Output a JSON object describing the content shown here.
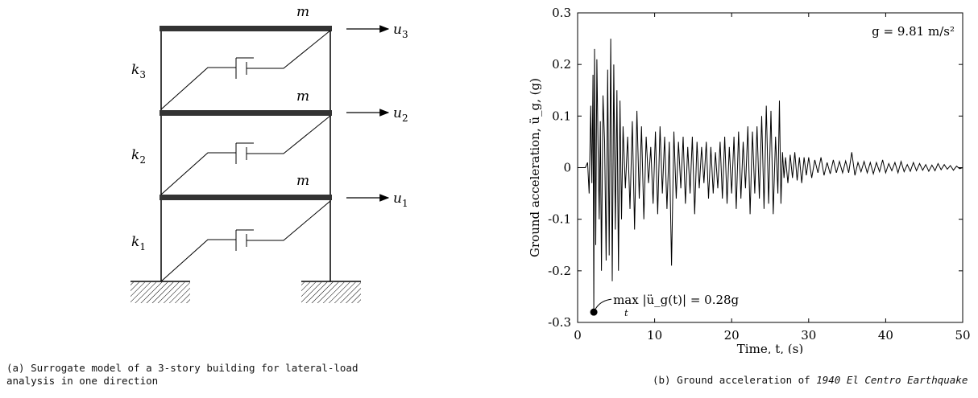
{
  "figure_a": {
    "mass_labels": [
      "m",
      "m",
      "m"
    ],
    "stiffness_labels": [
      "k3",
      "k2",
      "k1"
    ],
    "displacement_labels": [
      "u3",
      "u2",
      "u1"
    ],
    "caption": "(a) Surrogate model of a 3-story building for lateral-load analysis in one direction"
  },
  "figure_b": {
    "caption_prefix": "(b) Ground acceleration of ",
    "caption_italic": "1940 El Centro Earthquake",
    "gravity_note": "g = 9.81 m/s²",
    "peak_annotation": "max |ü_g(t)| = 0.28g",
    "peak_annotation_sub": "t"
  },
  "chart_data": {
    "type": "line",
    "xlabel": "Time, t, (s)",
    "ylabel": "Ground acceleration, ü_g, (g)",
    "xlim": [
      0,
      50
    ],
    "ylim": [
      -0.3,
      0.3
    ],
    "x_ticks": [
      "0",
      "10",
      "20",
      "30",
      "40",
      "50"
    ],
    "y_ticks": [
      "0.3",
      "0.2",
      "0.1",
      "0",
      "-0.1",
      "-0.2",
      "-0.3"
    ],
    "grid": false,
    "peak_point": {
      "t": 2.1,
      "a": -0.28
    },
    "series": [
      {
        "t": [
          0,
          1.0,
          1.3,
          1.5,
          1.7,
          1.85,
          2.0,
          2.1,
          2.2,
          2.35,
          2.5,
          2.65,
          2.8,
          2.95,
          3.1,
          3.3,
          3.5,
          3.7,
          3.9,
          4.1,
          4.3,
          4.5,
          4.7,
          4.9,
          5.1,
          5.3,
          5.5,
          5.7,
          5.9,
          6.2,
          6.5,
          6.8,
          7.1,
          7.4,
          7.7,
          8.0,
          8.3,
          8.6,
          8.9,
          9.2,
          9.5,
          9.8,
          10.1,
          10.4,
          10.7,
          11.0,
          11.3,
          11.6,
          11.9,
          12.2,
          12.5,
          12.8,
          13.1,
          13.4,
          13.7,
          14.0,
          14.3,
          14.6,
          14.9,
          15.2,
          15.5,
          15.8,
          16.1,
          16.4,
          16.7,
          17.0,
          17.3,
          17.6,
          17.9,
          18.2,
          18.5,
          18.8,
          19.1,
          19.4,
          19.7,
          20.0,
          20.3,
          20.6,
          20.9,
          21.2,
          21.5,
          21.8,
          22.1,
          22.4,
          22.7,
          23.0,
          23.3,
          23.6,
          23.9,
          24.2,
          24.5,
          24.8,
          25.1,
          25.4,
          25.7,
          26.0,
          26.2,
          26.4,
          26.6,
          26.8,
          27.0,
          27.3,
          27.6,
          27.9,
          28.2,
          28.5,
          28.8,
          29.1,
          29.4,
          29.7,
          30.0,
          30.4,
          30.8,
          31.2,
          31.6,
          32.0,
          32.4,
          32.8,
          33.2,
          33.6,
          34.0,
          34.4,
          34.8,
          35.2,
          35.6,
          36.0,
          36.4,
          36.8,
          37.2,
          37.6,
          38.0,
          38.4,
          38.8,
          39.2,
          39.6,
          40.0,
          40.4,
          40.8,
          41.2,
          41.6,
          42.0,
          42.4,
          42.8,
          43.2,
          43.6,
          44.0,
          44.4,
          44.8,
          45.2,
          45.6,
          46.0,
          46.4,
          46.8,
          47.2,
          47.6,
          48.0,
          48.4,
          48.8,
          49.2,
          49.6,
          50.0
        ],
        "a": [
          0,
          0.0,
          0.01,
          -0.05,
          0.12,
          -0.03,
          0.18,
          -0.28,
          0.23,
          -0.15,
          0.21,
          0.05,
          -0.1,
          0.09,
          -0.2,
          0.14,
          0.05,
          -0.18,
          0.19,
          -0.17,
          0.25,
          -0.22,
          0.2,
          -0.12,
          0.15,
          -0.2,
          0.13,
          -0.1,
          0.08,
          -0.04,
          0.06,
          -0.08,
          0.09,
          -0.12,
          0.11,
          -0.06,
          0.08,
          -0.1,
          0.06,
          -0.03,
          0.04,
          -0.07,
          0.07,
          -0.09,
          0.08,
          -0.05,
          0.06,
          -0.08,
          0.05,
          -0.19,
          0.07,
          -0.06,
          0.05,
          -0.04,
          0.06,
          -0.07,
          0.04,
          -0.05,
          0.06,
          -0.09,
          0.05,
          -0.04,
          0.04,
          -0.03,
          0.05,
          -0.06,
          0.04,
          -0.05,
          0.03,
          -0.04,
          0.05,
          -0.06,
          0.06,
          -0.07,
          0.04,
          -0.05,
          0.06,
          -0.08,
          0.07,
          -0.06,
          0.05,
          -0.04,
          0.08,
          -0.09,
          0.07,
          -0.05,
          0.08,
          -0.06,
          0.1,
          -0.08,
          0.12,
          -0.07,
          0.11,
          -0.09,
          0.06,
          -0.05,
          0.13,
          -0.07,
          0.03,
          -0.02,
          0.02,
          -0.03,
          0.025,
          -0.02,
          0.03,
          -0.025,
          0.02,
          -0.03,
          0.02,
          -0.015,
          0.02,
          -0.02,
          0.015,
          -0.01,
          0.02,
          -0.015,
          0.01,
          -0.012,
          0.015,
          -0.01,
          0.012,
          -0.01,
          0.013,
          -0.01,
          0.03,
          -0.015,
          0.01,
          -0.008,
          0.012,
          -0.01,
          0.01,
          -0.012,
          0.01,
          -0.008,
          0.015,
          -0.01,
          0.008,
          -0.006,
          0.01,
          -0.01,
          0.012,
          -0.008,
          0.006,
          -0.007,
          0.01,
          -0.006,
          0.008,
          -0.005,
          0.006,
          -0.007,
          0.005,
          -0.006,
          0.008,
          -0.004,
          0.006,
          -0.003,
          0.004,
          -0.005,
          0.003,
          -0.002,
          0.0
        ]
      }
    ]
  }
}
